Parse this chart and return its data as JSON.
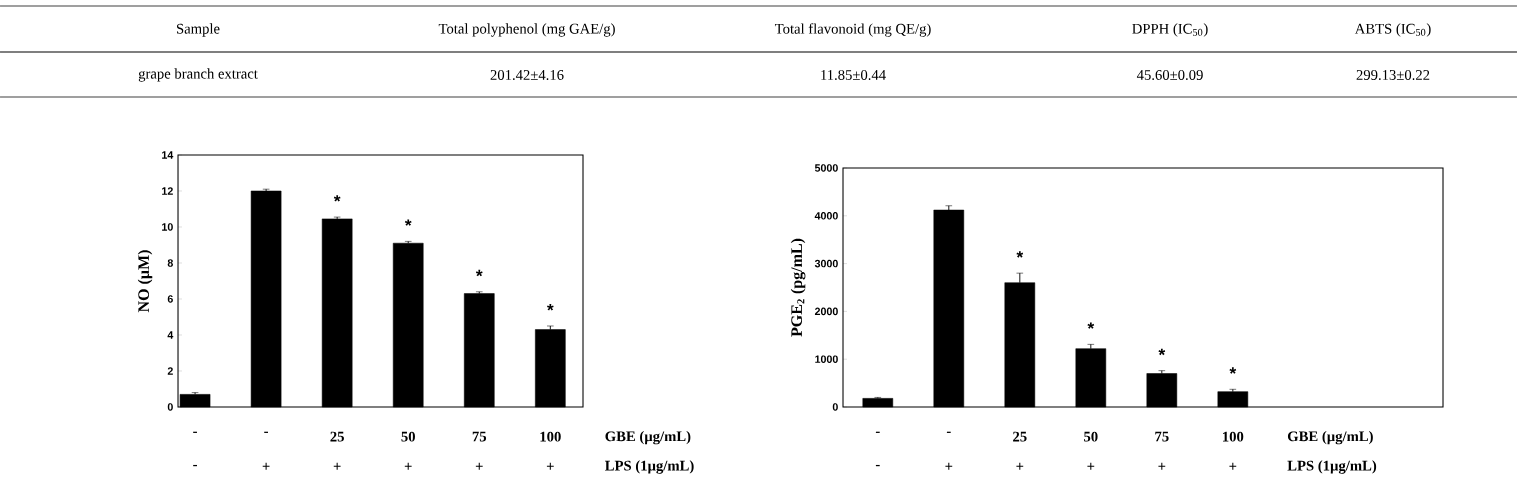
{
  "chart_data": [
    {
      "type": "other",
      "annotations": [
        "Sample",
        "Total polyphenol (mg GAE/g)",
        "Total flavonoid (mg QE/g)",
        "DPPH (IC$_{50}$)",
        "ABTS (IC$_{50}$)",
        "grape branch extract",
        "201.42±4.16",
        "11.85±0.44",
        "45.60±0.09",
        "299.13±0.22"
      ]
    },
    {
      "type": "bar",
      "ylabel": "NO (µM)",
      "categories": [
        "-",
        "-",
        "25",
        "50",
        "75",
        "100"
      ],
      "values": [
        0.7,
        12.0,
        10.45,
        9.1,
        6.3,
        4.3
      ],
      "errors": [
        0.1,
        0.1,
        0.1,
        0.1,
        0.1,
        0.2
      ],
      "color": "#000000",
      "ylim": [
        0,
        14
      ],
      "yticks": [
        0,
        2,
        4,
        6,
        8,
        10,
        12,
        14
      ],
      "annotations": [
        "*",
        "*",
        "*",
        "*",
        "-",
        "+",
        "+",
        "+",
        "+",
        "+",
        "GBE (µg/mL)",
        "LPS (1µg/mL)"
      ]
    },
    {
      "type": "bar",
      "ylabel": "PGE$_{2}$ (pg/mL)",
      "categories": [
        "-",
        "-",
        "25",
        "50",
        "75",
        "100"
      ],
      "values": [
        180,
        4120,
        2600,
        1220,
        700,
        320
      ],
      "errors": [
        20,
        90,
        200,
        90,
        60,
        50
      ],
      "color": "#000000",
      "ylim": [
        0,
        5000
      ],
      "yticks": [
        0,
        1000,
        2000,
        3000,
        4000,
        5000
      ],
      "annotations": [
        "*",
        "*",
        "*",
        "*",
        "-",
        "+",
        "+",
        "+",
        "+",
        "+",
        "GBE (µg/mL)",
        "LPS (1µg/mL)"
      ]
    }
  ]
}
